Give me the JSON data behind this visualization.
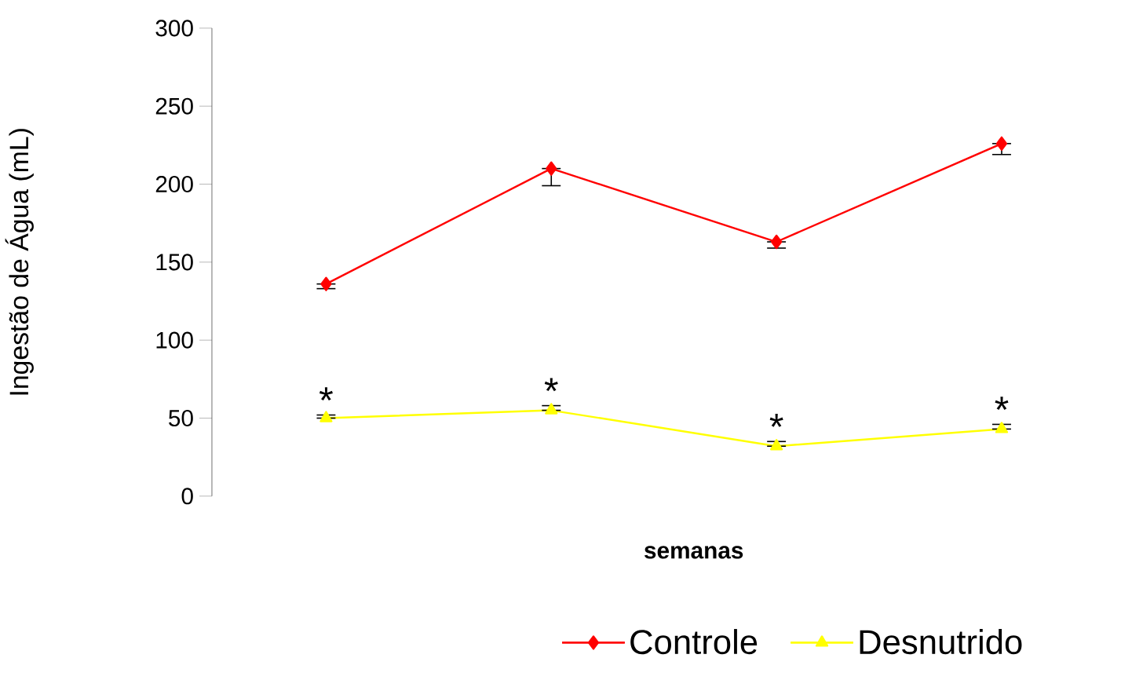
{
  "chart_data": {
    "type": "line",
    "xlabel": "semanas",
    "ylabel": "Ingestão de Água (mL)",
    "categories": [
      null,
      null,
      null,
      null
    ],
    "series": [
      {
        "name": "Controle",
        "color": "#ff0000",
        "marker": "diamond",
        "values": [
          136,
          210,
          163,
          226
        ],
        "errors": [
          [
            133,
            136
          ],
          [
            199,
            210
          ],
          [
            159,
            163
          ],
          [
            219,
            226
          ]
        ]
      },
      {
        "name": "Desnutrido",
        "color": "#ffff00",
        "marker": "triangle",
        "values": [
          50,
          55,
          32,
          43
        ],
        "errors": [
          [
            50,
            52
          ],
          [
            55,
            58
          ],
          [
            32,
            35
          ],
          [
            43,
            46
          ]
        ]
      }
    ],
    "annotations": [
      "*",
      "*",
      "*",
      "*"
    ],
    "ylim": [
      0,
      300
    ],
    "yticks": [
      0,
      50,
      100,
      150,
      200,
      250,
      300
    ],
    "tick_labels": "y",
    "grid": false,
    "legend": "bottom"
  }
}
